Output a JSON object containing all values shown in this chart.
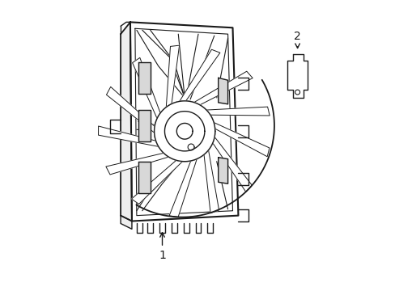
{
  "background_color": "#ffffff",
  "line_color": "#1a1a1a",
  "line_width": 1.0,
  "fig_width": 4.89,
  "fig_height": 3.6,
  "dpi": 100,
  "label1": "1",
  "label2": "2"
}
